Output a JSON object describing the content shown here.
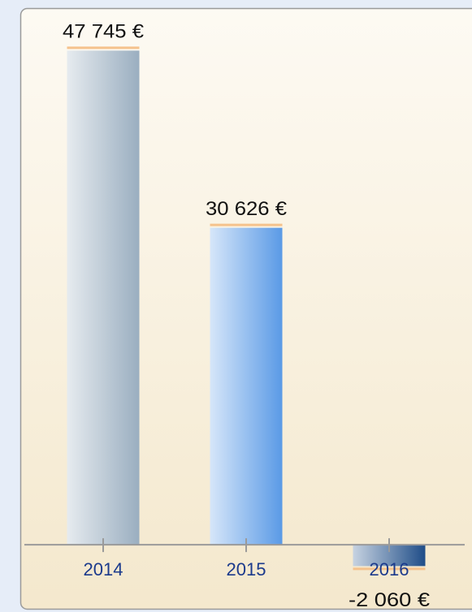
{
  "chart_data": {
    "type": "bar",
    "categories": [
      "2014",
      "2015",
      "2016"
    ],
    "values": [
      47745,
      30626,
      -2060
    ],
    "value_labels": [
      "47 745 €",
      "30 626 €",
      "-2 060 €"
    ],
    "colors": [
      "#9aaec0",
      "#5a9ae6",
      "#1f4d88"
    ],
    "ylim": [
      -5400,
      49500
    ]
  }
}
